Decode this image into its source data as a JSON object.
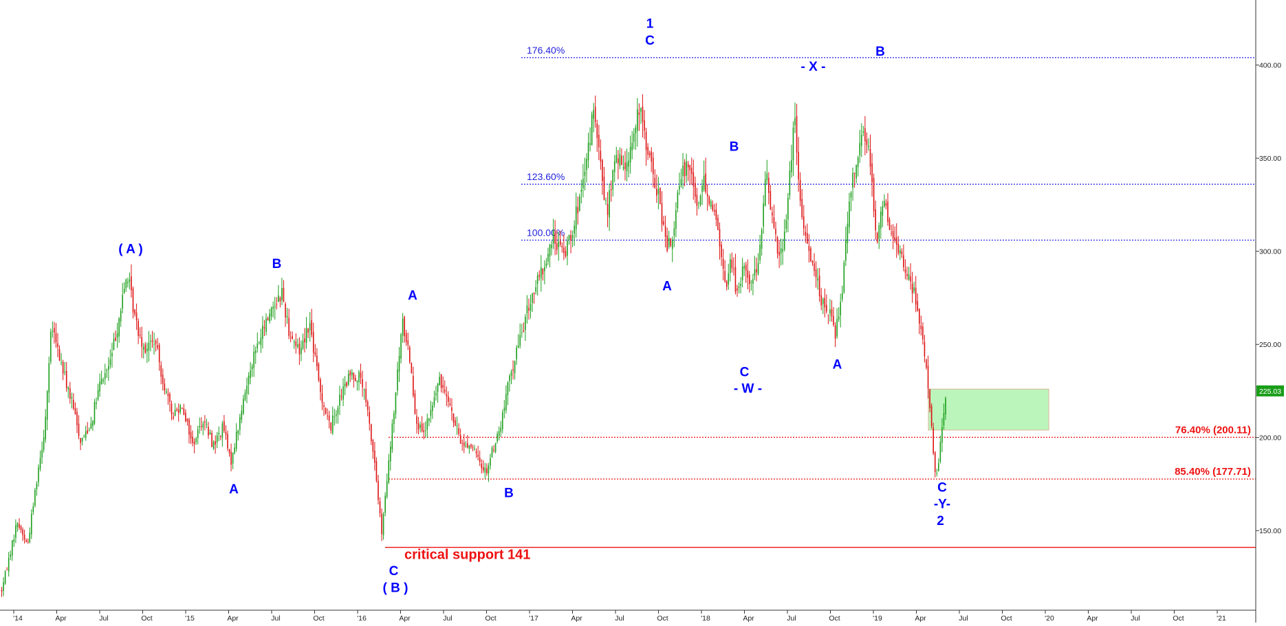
{
  "chart_data": {
    "type": "candlestick",
    "title": "",
    "xlabel": "",
    "ylabel": "",
    "ylim": [
      108,
      432
    ],
    "grid": false,
    "current_price": "225.03",
    "colors": {
      "up": "#1a9e1a",
      "down": "#dd1111",
      "wave_label": "#0000ff",
      "fib_line": "#1a1aee",
      "support": "#ee1111",
      "zone": "#b8f5b8"
    },
    "x_ticks": [
      {
        "label": "'14",
        "t": 0.0
      },
      {
        "label": "Apr",
        "t": 0.25
      },
      {
        "label": "Jul",
        "t": 0.5
      },
      {
        "label": "Oct",
        "t": 0.75
      },
      {
        "label": "'15",
        "t": 1.0
      },
      {
        "label": "Apr",
        "t": 1.25
      },
      {
        "label": "Jul",
        "t": 1.5
      },
      {
        "label": "Oct",
        "t": 1.75
      },
      {
        "label": "'16",
        "t": 2.0
      },
      {
        "label": "Apr",
        "t": 2.25
      },
      {
        "label": "Jul",
        "t": 2.5
      },
      {
        "label": "Oct",
        "t": 2.75
      },
      {
        "label": "'17",
        "t": 3.0
      },
      {
        "label": "Apr",
        "t": 3.25
      },
      {
        "label": "Jul",
        "t": 3.5
      },
      {
        "label": "Oct",
        "t": 3.75
      },
      {
        "label": "'18",
        "t": 4.0
      },
      {
        "label": "Apr",
        "t": 4.25
      },
      {
        "label": "Jul",
        "t": 4.5
      },
      {
        "label": "Oct",
        "t": 4.75
      },
      {
        "label": "'19",
        "t": 5.0
      },
      {
        "label": "Apr",
        "t": 5.25
      },
      {
        "label": "Jul",
        "t": 5.5
      },
      {
        "label": "Oct",
        "t": 5.75
      },
      {
        "label": "'20",
        "t": 6.0
      },
      {
        "label": "Apr",
        "t": 6.25
      },
      {
        "label": "Jul",
        "t": 6.5
      },
      {
        "label": "Oct",
        "t": 6.75
      },
      {
        "label": "'21",
        "t": 7.0
      }
    ],
    "y_ticks": [
      {
        "label": "150.00",
        "v": 150
      },
      {
        "label": "200.00",
        "v": 200
      },
      {
        "label": "250.00",
        "v": 250
      },
      {
        "label": "300.00",
        "v": 300
      },
      {
        "label": "350.00",
        "v": 350
      },
      {
        "label": "400.00",
        "v": 400
      }
    ],
    "price_path": [
      [
        -0.07,
        118
      ],
      [
        0.02,
        155
      ],
      [
        0.08,
        142
      ],
      [
        0.14,
        182
      ],
      [
        0.18,
        205
      ],
      [
        0.22,
        260
      ],
      [
        0.28,
        238
      ],
      [
        0.34,
        218
      ],
      [
        0.39,
        198
      ],
      [
        0.45,
        208
      ],
      [
        0.5,
        228
      ],
      [
        0.56,
        240
      ],
      [
        0.62,
        268
      ],
      [
        0.66,
        288
      ],
      [
        0.71,
        262
      ],
      [
        0.76,
        248
      ],
      [
        0.82,
        252
      ],
      [
        0.87,
        230
      ],
      [
        0.92,
        212
      ],
      [
        0.98,
        218
      ],
      [
        1.04,
        196
      ],
      [
        1.1,
        210
      ],
      [
        1.16,
        196
      ],
      [
        1.22,
        206
      ],
      [
        1.26,
        186
      ],
      [
        1.32,
        212
      ],
      [
        1.38,
        240
      ],
      [
        1.44,
        255
      ],
      [
        1.5,
        270
      ],
      [
        1.56,
        278
      ],
      [
        1.6,
        258
      ],
      [
        1.66,
        246
      ],
      [
        1.72,
        262
      ],
      [
        1.78,
        226
      ],
      [
        1.84,
        205
      ],
      [
        1.9,
        222
      ],
      [
        1.96,
        234
      ],
      [
        2.02,
        232
      ],
      [
        2.06,
        212
      ],
      [
        2.1,
        186
      ],
      [
        2.14,
        148
      ],
      [
        2.18,
        185
      ],
      [
        2.22,
        222
      ],
      [
        2.26,
        262
      ],
      [
        2.3,
        246
      ],
      [
        2.34,
        210
      ],
      [
        2.38,
        200
      ],
      [
        2.43,
        215
      ],
      [
        2.47,
        230
      ],
      [
        2.52,
        225
      ],
      [
        2.56,
        208
      ],
      [
        2.61,
        196
      ],
      [
        2.66,
        196
      ],
      [
        2.71,
        186
      ],
      [
        2.75,
        182
      ],
      [
        2.79,
        195
      ],
      [
        2.83,
        205
      ],
      [
        2.88,
        230
      ],
      [
        2.93,
        248
      ],
      [
        2.97,
        262
      ],
      [
        3.02,
        278
      ],
      [
        3.08,
        290
      ],
      [
        3.14,
        308
      ],
      [
        3.2,
        298
      ],
      [
        3.26,
        316
      ],
      [
        3.32,
        338
      ],
      [
        3.37,
        376
      ],
      [
        3.41,
        348
      ],
      [
        3.45,
        320
      ],
      [
        3.5,
        350
      ],
      [
        3.55,
        345
      ],
      [
        3.6,
        360
      ],
      [
        3.64,
        376
      ],
      [
        3.68,
        358
      ],
      [
        3.72,
        340
      ],
      [
        3.76,
        325
      ],
      [
        3.8,
        300
      ],
      [
        3.84,
        312
      ],
      [
        3.88,
        340
      ],
      [
        3.93,
        350
      ],
      [
        3.97,
        325
      ],
      [
        4.02,
        338
      ],
      [
        4.06,
        325
      ],
      [
        4.1,
        310
      ],
      [
        4.14,
        278
      ],
      [
        4.17,
        298
      ],
      [
        4.21,
        275
      ],
      [
        4.25,
        294
      ],
      [
        4.29,
        282
      ],
      [
        4.34,
        300
      ],
      [
        4.38,
        344
      ],
      [
        4.42,
        312
      ],
      [
        4.46,
        296
      ],
      [
        4.5,
        325
      ],
      [
        4.54,
        372
      ],
      [
        4.58,
        318
      ],
      [
        4.62,
        302
      ],
      [
        4.66,
        292
      ],
      [
        4.7,
        272
      ],
      [
        4.74,
        268
      ],
      [
        4.78,
        256
      ],
      [
        4.82,
        282
      ],
      [
        4.86,
        330
      ],
      [
        4.9,
        350
      ],
      [
        4.94,
        364
      ],
      [
        4.98,
        352
      ],
      [
        5.02,
        305
      ],
      [
        5.06,
        330
      ],
      [
        5.1,
        310
      ],
      [
        5.15,
        300
      ],
      [
        5.2,
        288
      ],
      [
        5.24,
        276
      ],
      [
        5.28,
        258
      ],
      [
        5.32,
        228
      ],
      [
        5.35,
        188
      ],
      [
        5.37,
        178
      ],
      [
        5.4,
        205
      ],
      [
        5.42,
        222
      ]
    ],
    "wave_labels": [
      {
        "text": "( A )",
        "t": 0.68,
        "v": 299
      },
      {
        "text": "B",
        "t": 1.53,
        "v": 291
      },
      {
        "text": "A",
        "t": 1.28,
        "v": 170
      },
      {
        "text": "A",
        "t": 2.32,
        "v": 274
      },
      {
        "text": "C",
        "t": 2.21,
        "v": 126
      },
      {
        "text": "( B )",
        "t": 2.22,
        "v": 117
      },
      {
        "text": "B",
        "t": 2.88,
        "v": 168
      },
      {
        "text": "1",
        "t": 3.7,
        "v": 420
      },
      {
        "text": "C",
        "t": 3.7,
        "v": 411
      },
      {
        "text": "A",
        "t": 3.8,
        "v": 279
      },
      {
        "text": "B",
        "t": 4.19,
        "v": 354
      },
      {
        "text": "C",
        "t": 4.25,
        "v": 233
      },
      {
        "text": "- W -",
        "t": 4.27,
        "v": 224
      },
      {
        "text": "- X -",
        "t": 4.65,
        "v": 397
      },
      {
        "text": "B",
        "t": 5.04,
        "v": 405
      },
      {
        "text": "A",
        "t": 4.79,
        "v": 237
      },
      {
        "text": "C",
        "t": 5.4,
        "v": 171
      },
      {
        "text": "-Y-",
        "t": 5.4,
        "v": 162
      },
      {
        "text": "2",
        "t": 5.39,
        "v": 153
      }
    ],
    "fib_levels": [
      {
        "label": "176.40%",
        "v": 404
      },
      {
        "label": "123.60%",
        "v": 336
      },
      {
        "label": "100.00%",
        "v": 306
      }
    ],
    "red_levels": [
      {
        "label": "76.40% (200.11)",
        "v": 200.11
      },
      {
        "label": "85.40% (177.71)",
        "v": 177.71
      }
    ],
    "support": {
      "label": "critical support 141",
      "v": 141
    },
    "target_zone": {
      "t_start": 5.32,
      "t_end": 6.02,
      "v_low": 204,
      "v_high": 226
    }
  }
}
